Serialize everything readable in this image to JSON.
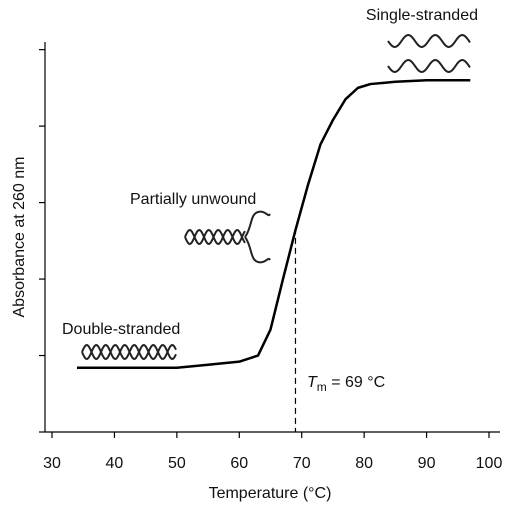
{
  "chart_data": {
    "type": "line",
    "xlabel": "Temperature (°C)",
    "ylabel": "Absorbance at 260 nm",
    "xlim": [
      30,
      100
    ],
    "xticks": [
      30,
      40,
      50,
      60,
      70,
      80,
      90,
      100
    ],
    "ylim": [
      0,
      5.1
    ],
    "yticks": [
      0,
      1,
      2,
      3,
      4,
      5
    ],
    "series": [
      {
        "color": "#000000",
        "x": [
          34,
          40,
          50,
          55,
          60,
          63,
          65,
          67,
          69,
          71,
          73,
          75,
          77,
          79,
          81,
          85,
          90,
          97
        ],
        "values": [
          0.84,
          0.84,
          0.84,
          0.88,
          0.92,
          1.0,
          1.34,
          2.0,
          2.64,
          3.23,
          3.76,
          4.08,
          4.35,
          4.5,
          4.55,
          4.58,
          4.6,
          4.6
        ]
      }
    ],
    "tm_line": {
      "x": 69,
      "y": 2.67
    },
    "tm_label": {
      "symbol": "T",
      "subscript": "m",
      "text": " = 69 °C"
    },
    "annotations": [
      "Single-stranded",
      "Partially unwound",
      "Double-stranded"
    ]
  }
}
